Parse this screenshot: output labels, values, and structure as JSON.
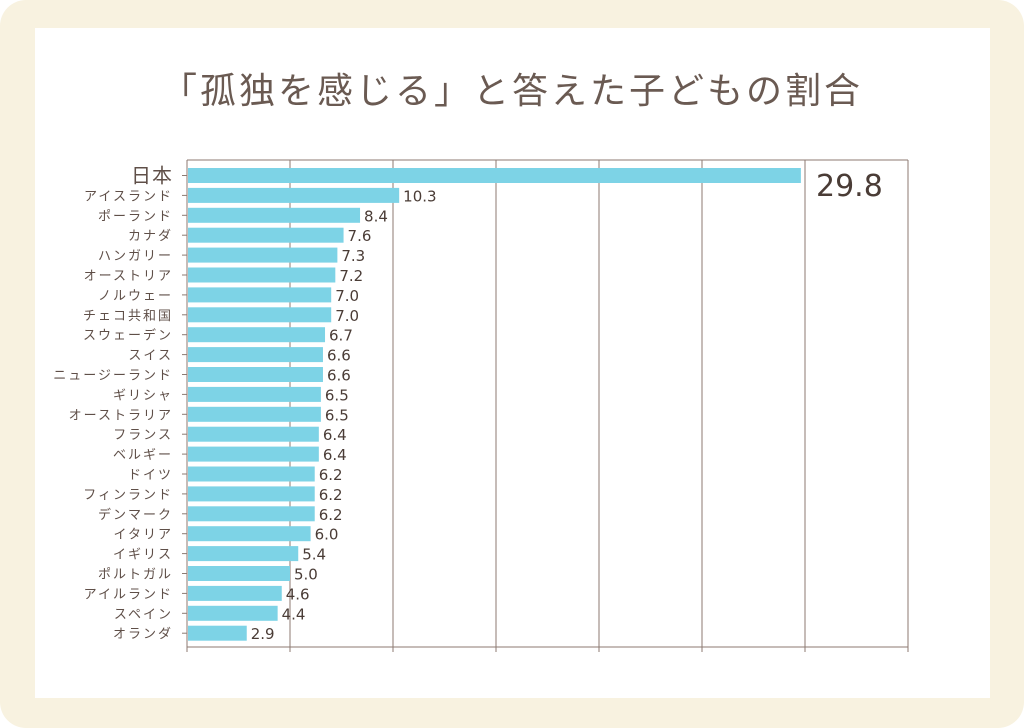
{
  "title": "「孤独を感じる」と答えた子どもの割合",
  "colors": {
    "bar": "#7dd3e6",
    "grid": "#8c7a72",
    "frame": "#f8f2e0",
    "text": "#5f4f48"
  },
  "chart_data": {
    "type": "bar",
    "orientation": "horizontal",
    "categories": [
      "日本",
      "アイスランド",
      "ポーランド",
      "カナダ",
      "ハンガリー",
      "オーストリア",
      "ノルウェー",
      "チェコ共和国",
      "スウェーデン",
      "スイス",
      "ニュージーランド",
      "ギリシャ",
      "オーストラリア",
      "フランス",
      "ベルギー",
      "ドイツ",
      "フィンランド",
      "デンマーク",
      "イタリア",
      "イギリス",
      "ポルトガル",
      "アイルランド",
      "スペイン",
      "オランダ"
    ],
    "values": [
      29.8,
      10.3,
      8.4,
      7.6,
      7.3,
      7.2,
      7.0,
      7.0,
      6.7,
      6.6,
      6.6,
      6.5,
      6.5,
      6.4,
      6.4,
      6.2,
      6.2,
      6.2,
      6.0,
      5.4,
      5.0,
      4.6,
      4.4,
      2.9
    ],
    "value_labels": [
      "29.8",
      "10.3",
      "8.4",
      "7.6",
      "7.3",
      "7.2",
      "7.0",
      "7.0",
      "6.7",
      "6.6",
      "6.6",
      "6.5",
      "6.5",
      "6.4",
      "6.4",
      "6.2",
      "6.2",
      "6.2",
      "6.0",
      "5.4",
      "5.0",
      "4.6",
      "4.4",
      "2.9"
    ],
    "xlim": [
      0,
      35
    ],
    "grid": true,
    "xlabel": "",
    "ylabel": ""
  }
}
